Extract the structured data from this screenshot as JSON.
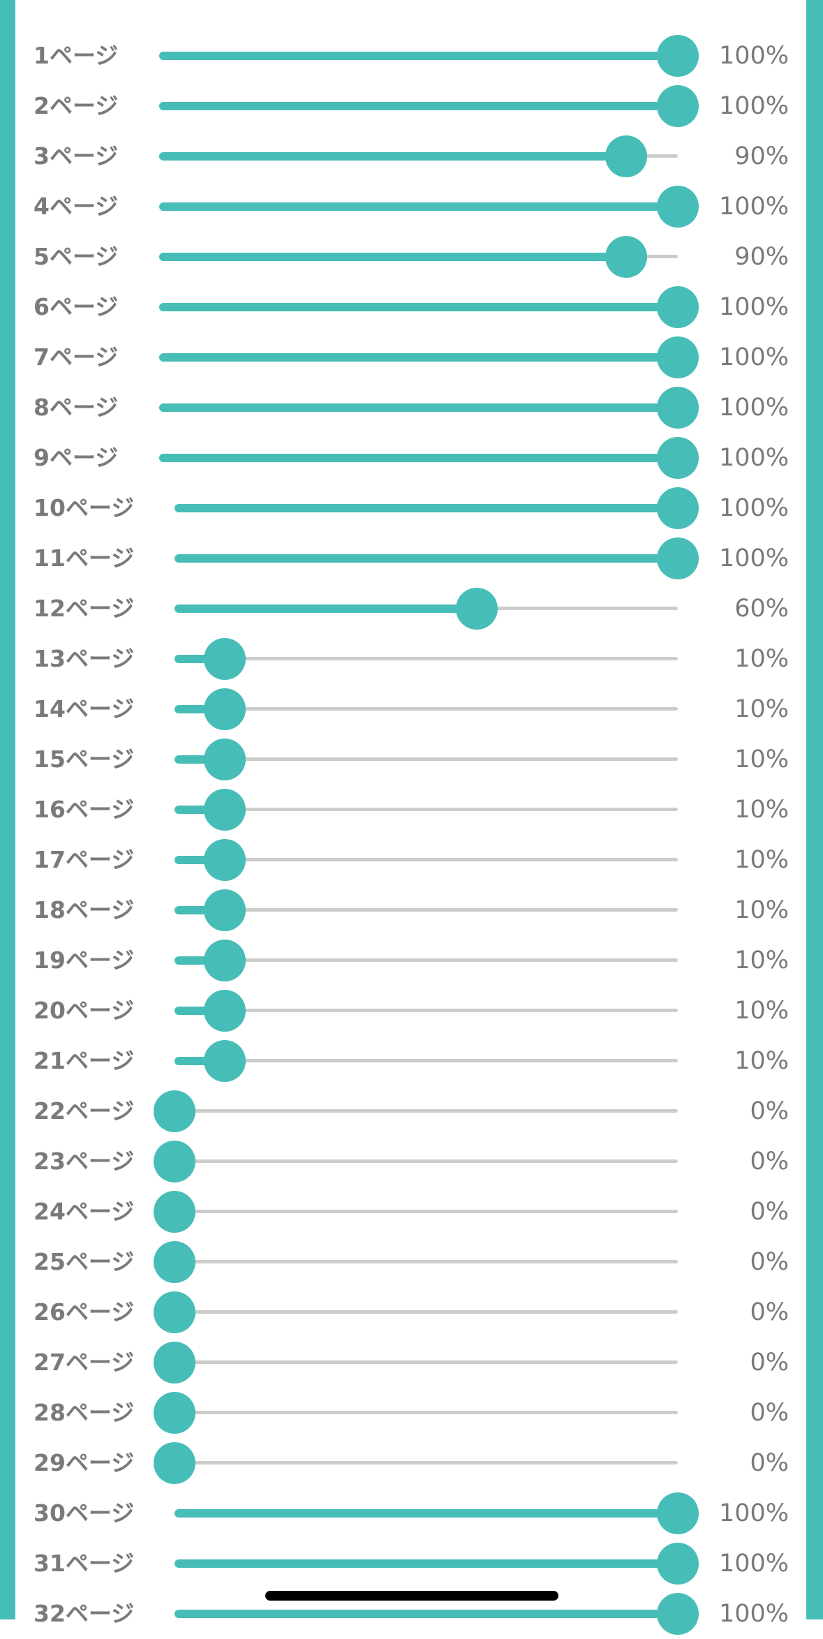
{
  "accent_color": "#47BDB8",
  "track_color": "#CCCCCC",
  "text_color": "#7A7A7A",
  "pages": [
    {
      "label": "1ページ",
      "value": 1.0,
      "value_text": "100%"
    },
    {
      "label": "2ページ",
      "value": 1.0,
      "value_text": "100%"
    },
    {
      "label": "3ページ",
      "value": 0.9,
      "value_text": "90%"
    },
    {
      "label": "4ページ",
      "value": 1.0,
      "value_text": "100%"
    },
    {
      "label": "5ページ",
      "value": 0.9,
      "value_text": "90%"
    },
    {
      "label": "6ページ",
      "value": 1.0,
      "value_text": "100%"
    },
    {
      "label": "7ページ",
      "value": 1.0,
      "value_text": "100%"
    },
    {
      "label": "8ページ",
      "value": 1.0,
      "value_text": "100%"
    },
    {
      "label": "9ページ",
      "value": 1.0,
      "value_text": "100%"
    },
    {
      "label": "10ページ",
      "value": 1.0,
      "value_text": "100%"
    },
    {
      "label": "11ページ",
      "value": 1.0,
      "value_text": "100%"
    },
    {
      "label": "12ページ",
      "value": 0.6,
      "value_text": "60%"
    },
    {
      "label": "13ページ",
      "value": 0.1,
      "value_text": "10%"
    },
    {
      "label": "14ページ",
      "value": 0.1,
      "value_text": "10%"
    },
    {
      "label": "15ページ",
      "value": 0.1,
      "value_text": "10%"
    },
    {
      "label": "16ページ",
      "value": 0.1,
      "value_text": "10%"
    },
    {
      "label": "17ページ",
      "value": 0.1,
      "value_text": "10%"
    },
    {
      "label": "18ページ",
      "value": 0.1,
      "value_text": "10%"
    },
    {
      "label": "19ページ",
      "value": 0.1,
      "value_text": "10%"
    },
    {
      "label": "20ページ",
      "value": 0.1,
      "value_text": "10%"
    },
    {
      "label": "21ページ",
      "value": 0.1,
      "value_text": "10%"
    },
    {
      "label": "22ページ",
      "value": 0.0,
      "value_text": "0%"
    },
    {
      "label": "23ページ",
      "value": 0.0,
      "value_text": "0%"
    },
    {
      "label": "24ページ",
      "value": 0.0,
      "value_text": "0%"
    },
    {
      "label": "25ページ",
      "value": 0.0,
      "value_text": "0%"
    },
    {
      "label": "26ページ",
      "value": 0.0,
      "value_text": "0%"
    },
    {
      "label": "27ページ",
      "value": 0.0,
      "value_text": "0%"
    },
    {
      "label": "28ページ",
      "value": 0.0,
      "value_text": "0%"
    },
    {
      "label": "29ページ",
      "value": 0.0,
      "value_text": "0%"
    },
    {
      "label": "30ページ",
      "value": 1.0,
      "value_text": "100%"
    },
    {
      "label": "31ページ",
      "value": 1.0,
      "value_text": "100%"
    },
    {
      "label": "32ページ",
      "value": 1.0,
      "value_text": "100%"
    }
  ]
}
